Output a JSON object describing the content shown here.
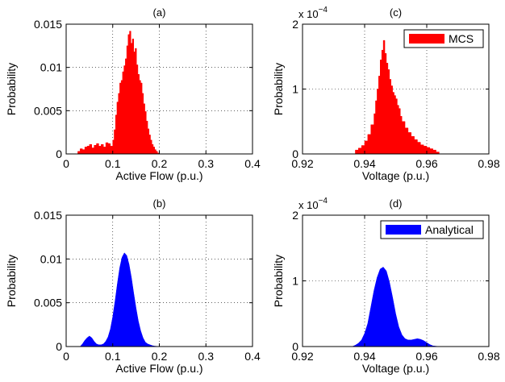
{
  "figure": {
    "line_color": "#000000",
    "mcs_color": "#ff0000",
    "analytical_color": "#0000ff"
  },
  "chart_data": [
    {
      "id": "a",
      "type": "area",
      "style": "histogram",
      "title": "(a)",
      "xlabel": "Active Flow (p.u.)",
      "ylabel": "Probability",
      "xlim": [
        0,
        0.4
      ],
      "ylim": [
        0,
        0.015
      ],
      "xticks": [
        "0",
        "0.1",
        "0.2",
        "0.3",
        "0.4"
      ],
      "yticks": [
        "0",
        "0.005",
        "0.01",
        "0.015"
      ],
      "grid": true,
      "legend": null,
      "series": [
        {
          "color": "#ff0000",
          "x": [
            0.02,
            0.025,
            0.03,
            0.035,
            0.04,
            0.045,
            0.05,
            0.055,
            0.06,
            0.065,
            0.07,
            0.075,
            0.08,
            0.085,
            0.09,
            0.095,
            0.1,
            0.103,
            0.106,
            0.109,
            0.112,
            0.115,
            0.118,
            0.121,
            0.124,
            0.127,
            0.13,
            0.133,
            0.136,
            0.139,
            0.142,
            0.145,
            0.148,
            0.151,
            0.154,
            0.157,
            0.16,
            0.163,
            0.166,
            0.169,
            0.172,
            0.175,
            0.178,
            0.181,
            0.184,
            0.187,
            0.19,
            0.193,
            0.196,
            0.2
          ],
          "y": [
            0,
            0.0003,
            0.0006,
            0.0005,
            0.0008,
            0.0009,
            0.0011,
            0.0007,
            0.001,
            0.0012,
            0.0009,
            0.0011,
            0.0008,
            0.0013,
            0.0012,
            0.0009,
            0.0016,
            0.0028,
            0.0045,
            0.006,
            0.007,
            0.0082,
            0.0085,
            0.0095,
            0.0102,
            0.011,
            0.0125,
            0.0138,
            0.0142,
            0.0128,
            0.0133,
            0.0118,
            0.0122,
            0.0103,
            0.0092,
            0.0085,
            0.0082,
            0.007,
            0.0058,
            0.0049,
            0.0038,
            0.0029,
            0.0022,
            0.0016,
            0.0011,
            0.0008,
            0.0005,
            0.0003,
            0.0001,
            0
          ]
        }
      ]
    },
    {
      "id": "c",
      "type": "area",
      "style": "histogram",
      "title": "(c)",
      "xlabel": "Voltage (p.u.)",
      "ylabel": "Probability",
      "xlim": [
        0.92,
        0.98
      ],
      "ylim": [
        0,
        2
      ],
      "scale_label": "x 10",
      "scale_exponent": "−4",
      "xticks": [
        "0.92",
        "0.94",
        "0.96",
        "0.98"
      ],
      "yticks": [
        "0",
        "1",
        "2"
      ],
      "grid": true,
      "legend": {
        "position": "top-right",
        "entries": [
          "MCS"
        ]
      },
      "series": [
        {
          "name": "MCS",
          "color": "#ff0000",
          "x": [
            0.9365,
            0.937,
            0.938,
            0.939,
            0.94,
            0.941,
            0.942,
            0.943,
            0.9435,
            0.944,
            0.9445,
            0.945,
            0.9455,
            0.946,
            0.9465,
            0.947,
            0.9475,
            0.948,
            0.9485,
            0.949,
            0.9495,
            0.95,
            0.9505,
            0.951,
            0.9515,
            0.952,
            0.953,
            0.954,
            0.955,
            0.956,
            0.957,
            0.958,
            0.959,
            0.96,
            0.961,
            0.962,
            0.963,
            0.964
          ],
          "y": [
            0,
            0.06,
            0.09,
            0.13,
            0.2,
            0.3,
            0.45,
            0.62,
            0.82,
            1.0,
            1.2,
            1.45,
            1.6,
            1.75,
            1.55,
            1.4,
            1.3,
            1.15,
            1.05,
            0.95,
            0.9,
            0.85,
            0.75,
            0.7,
            0.58,
            0.5,
            0.4,
            0.33,
            0.27,
            0.22,
            0.18,
            0.14,
            0.12,
            0.1,
            0.08,
            0.06,
            0.03,
            0
          ]
        }
      ]
    },
    {
      "id": "b",
      "type": "area",
      "title": "(b)",
      "xlabel": "Active Flow (p.u.)",
      "ylabel": "Probability",
      "xlim": [
        0,
        0.4
      ],
      "ylim": [
        0,
        0.015
      ],
      "xticks": [
        "0",
        "0.1",
        "0.2",
        "0.3",
        "0.4"
      ],
      "yticks": [
        "0",
        "0.005",
        "0.01",
        "0.015"
      ],
      "grid": true,
      "legend": null,
      "series": [
        {
          "color": "#0000ff",
          "x": [
            0.03,
            0.035,
            0.04,
            0.045,
            0.05,
            0.055,
            0.06,
            0.065,
            0.07,
            0.075,
            0.08,
            0.085,
            0.09,
            0.095,
            0.1,
            0.105,
            0.11,
            0.115,
            0.12,
            0.125,
            0.13,
            0.135,
            0.14,
            0.145,
            0.15,
            0.155,
            0.16,
            0.165,
            0.17,
            0.175,
            0.18,
            0.185,
            0.19,
            0.2
          ],
          "y": [
            0,
            0.0003,
            0.0007,
            0.001,
            0.0012,
            0.001,
            0.0006,
            0.0003,
            0.0002,
            0.0002,
            0.0003,
            0.0006,
            0.0011,
            0.002,
            0.0034,
            0.0052,
            0.0072,
            0.009,
            0.0102,
            0.0107,
            0.0104,
            0.0094,
            0.0079,
            0.0061,
            0.0044,
            0.0029,
            0.0018,
            0.001,
            0.0005,
            0.0003,
            0.0002,
            0.0001,
            5e-05,
            0
          ]
        }
      ]
    },
    {
      "id": "d",
      "type": "area",
      "title": "(d)",
      "xlabel": "Voltage (p.u.)",
      "ylabel": "Probability",
      "xlim": [
        0.92,
        0.98
      ],
      "ylim": [
        0,
        2
      ],
      "scale_label": "x 10",
      "scale_exponent": "−4",
      "xticks": [
        "0.92",
        "0.94",
        "0.96",
        "0.98"
      ],
      "yticks": [
        "0",
        "1",
        "2"
      ],
      "grid": true,
      "legend": {
        "position": "top-right",
        "entries": [
          "Analytical"
        ]
      },
      "series": [
        {
          "name": "Analytical",
          "color": "#0000ff",
          "x": [
            0.936,
            0.937,
            0.938,
            0.939,
            0.94,
            0.941,
            0.942,
            0.943,
            0.944,
            0.945,
            0.946,
            0.947,
            0.948,
            0.949,
            0.95,
            0.951,
            0.952,
            0.953,
            0.954,
            0.955,
            0.956,
            0.957,
            0.958,
            0.959,
            0.96,
            0.961,
            0.962,
            0.964
          ],
          "y": [
            0,
            0.02,
            0.05,
            0.1,
            0.2,
            0.35,
            0.6,
            0.85,
            1.05,
            1.18,
            1.21,
            1.15,
            0.98,
            0.75,
            0.5,
            0.3,
            0.18,
            0.12,
            0.1,
            0.1,
            0.11,
            0.12,
            0.11,
            0.09,
            0.06,
            0.03,
            0.01,
            0
          ]
        }
      ]
    }
  ]
}
